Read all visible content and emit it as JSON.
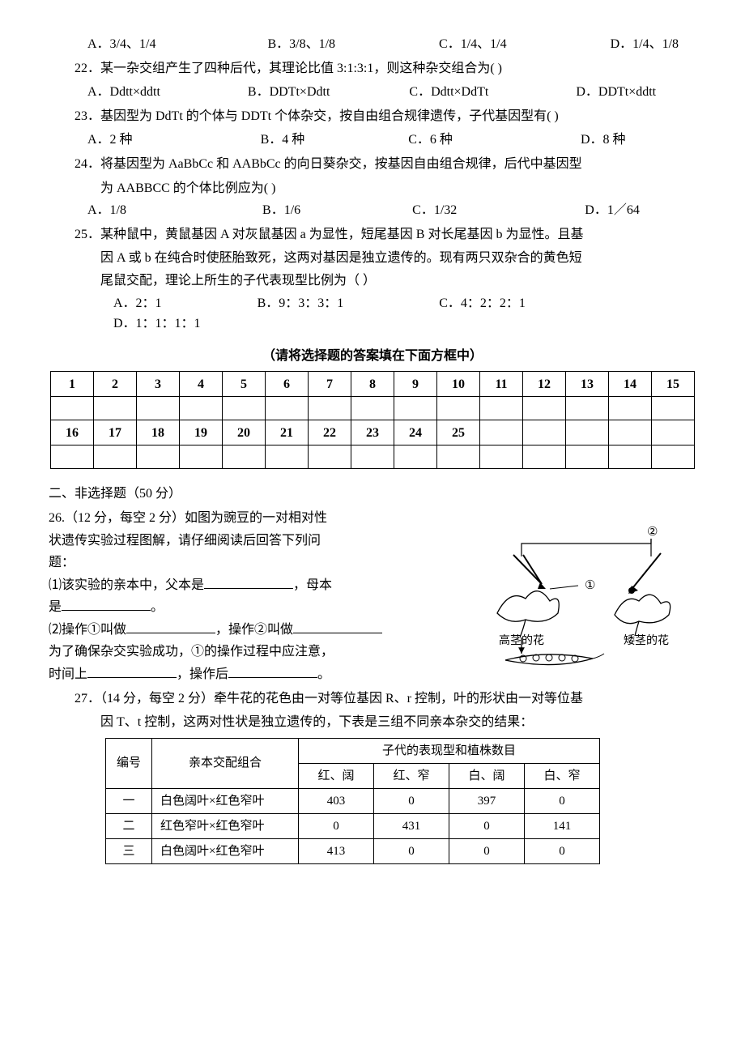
{
  "q21": {
    "options": {
      "A": "A．3/4、1/4",
      "B": "B．3/8、1/8",
      "C": "C．1/4、1/4",
      "D": "D．1/4、1/8"
    },
    "gaps": {
      "AB": 130,
      "BC": 120,
      "CD": 120
    }
  },
  "q22": {
    "text": "22．某一杂交组产生了四种后代，其理论比值 3:1:3:1，则这种杂交组合为(    )",
    "options": {
      "A": "A．Ddtt×ddtt",
      "B": "B．DDTt×Ddtt",
      "C": "C．Ddtt×DdTt",
      "D": "D．DDTt×ddtt"
    },
    "gaps": {
      "AB": 100,
      "BC": 90,
      "CD": 100
    }
  },
  "q23": {
    "text": "23．基因型为 DdTt 的个体与 DDTt 个体杂交，按自由组合规律遗传，子代基因型有(     )",
    "options": {
      "A": "A．2 种",
      "B": "B．4 种",
      "C": "C．6 种",
      "D": "D．8 种"
    },
    "gaps": {
      "AB": 150,
      "BC": 120,
      "CD": 150
    }
  },
  "q24": {
    "text1": "24．将基因型为 AaBbCc 和 AABbCc 的向日葵杂交，按基因自由组合规律，后代中基因型",
    "text2": "为 AABBCC 的个体比例应为(     )",
    "options": {
      "A": "A．1/8",
      "B": "B．1/6",
      "C": "C．1/32",
      "D": "D．1／64"
    },
    "gaps": {
      "AB": 160,
      "BC": 130,
      "CD": 150
    }
  },
  "q25": {
    "text1": "25．某种鼠中，黄鼠基因 A 对灰鼠基因 a 为显性，短尾基因 B 对长尾基因 b 为显性。且基",
    "text2": "因 A 或 b 在纯合时使胚胎致死，这两对基因是独立遗传的。现有两只双杂合的黄色短",
    "text3": "尾鼠交配，理论上所生的子代表现型比例为（    ）",
    "options": {
      "A": "A．2：1",
      "B": "B．9：3：3：1",
      "C": "C．4：2：2：1",
      "D": "D．1：1：1：1"
    },
    "gaps": {
      "AB": 110,
      "BC": 110,
      "CD": 100
    }
  },
  "answer_grid_note": "（请将选择题的答案填在下面方框中）",
  "answer_grid": {
    "row1": [
      "1",
      "2",
      "3",
      "4",
      "5",
      "6",
      "7",
      "8",
      "9",
      "10",
      "11",
      "12",
      "13",
      "14",
      "15"
    ],
    "row2": [
      "16",
      "17",
      "18",
      "19",
      "20",
      "21",
      "22",
      "23",
      "24",
      "25",
      "",
      "",
      "",
      "",
      ""
    ]
  },
  "section2_title": "二、非选择题（50 分）",
  "q26": {
    "l1": "26.（12 分，每空 2 分）如图为豌豆的一对相对性",
    "l2": "状遗传实验过程图解，请仔细阅读后回答下列问",
    "l3": "题：",
    "p1a": "⑴该实验的亲本中，父本是",
    "p1b": "，母本",
    "p1c": "是",
    "p1d": "。",
    "p2a": "⑵操作①叫做",
    "p2b": "，操作②叫做",
    "p3a": "为了确保杂交实验成功，①的操作过程中应注意，",
    "p4a": "时间上",
    "p4b": "，操作后",
    "p4c": "。",
    "fig": {
      "circle2": "②",
      "circle1": "①",
      "label_left": "高茎的花",
      "label_right": "矮茎的花"
    }
  },
  "q27": {
    "l1": "27．（14 分，每空 2 分）牵牛花的花色由一对等位基因 R、r 控制，叶的形状由一对等位基",
    "l2": "因 T、t 控制，这两对性状是独立遗传的，下表是三组不同亲本杂交的结果：",
    "table": {
      "header_top": [
        "编号",
        "亲本交配组合",
        "子代的表现型和植株数目"
      ],
      "header_sub": [
        "红、阔",
        "红、窄",
        "白、阔",
        "白、窄"
      ],
      "rows": [
        [
          "一",
          "白色阔叶×红色窄叶",
          "403",
          "0",
          "397",
          "0"
        ],
        [
          "二",
          "红色窄叶×红色窄叶",
          "0",
          "431",
          "0",
          "141"
        ],
        [
          "三",
          "白色阔叶×红色窄叶",
          "413",
          "0",
          "0",
          "0"
        ]
      ]
    }
  }
}
